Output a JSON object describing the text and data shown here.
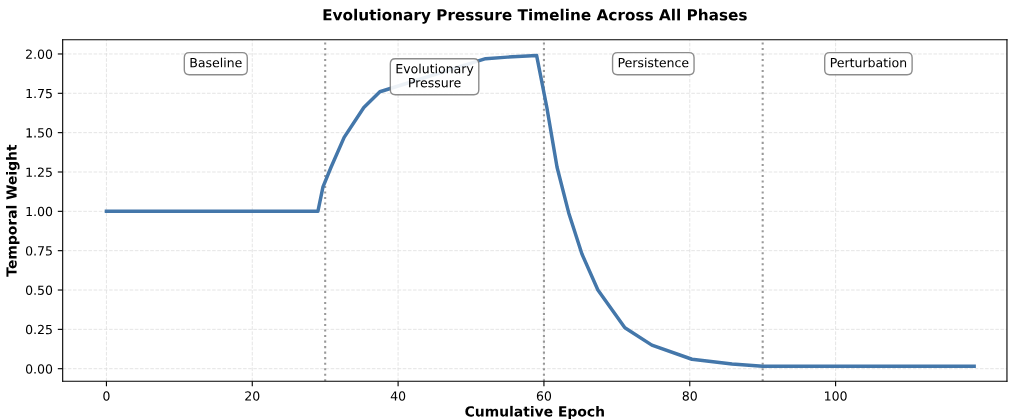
{
  "chart_data": {
    "type": "line",
    "title": "Evolutionary Pressure Timeline Across All Phases",
    "xlabel": "Cumulative Epoch",
    "ylabel": "Temporal Weight",
    "series": [
      {
        "color": "#4477aa",
        "x": [
          0,
          10,
          20,
          29,
          29.7,
          30.8,
          32.6,
          35.3,
          37.5,
          52,
          55,
          59,
          60.4,
          61.8,
          63.4,
          65.2,
          67.4,
          71.1,
          74.8,
          80.3,
          85.8,
          90,
          100,
          110,
          119
        ],
        "values": [
          1.0,
          1.0,
          1.0,
          1.0,
          1.155,
          1.28,
          1.47,
          1.66,
          1.76,
          1.97,
          1.98,
          1.99,
          1.66,
          1.28,
          0.99,
          0.73,
          0.5,
          0.26,
          0.15,
          0.06,
          0.03,
          0.015,
          0.015,
          0.015,
          0.015
        ]
      }
    ],
    "xlim": [
      -6,
      123.5
    ],
    "ylim": [
      -0.08,
      2.09
    ],
    "xticks": [
      0,
      20,
      40,
      60,
      80,
      100
    ],
    "yticks": [
      {
        "value": 0,
        "label": "0.00"
      },
      {
        "value": 0.25,
        "label": "0.25"
      },
      {
        "value": 0.5,
        "label": "0.50"
      },
      {
        "value": 0.75,
        "label": "0.75"
      },
      {
        "value": 1.0,
        "label": "1.00"
      },
      {
        "value": 1.25,
        "label": "1.25"
      },
      {
        "value": 1.5,
        "label": "1.50"
      },
      {
        "value": 1.75,
        "label": "1.75"
      },
      {
        "value": 2.0,
        "label": "2.00"
      }
    ],
    "ref_lines": [
      {
        "axis": "x",
        "value": 30,
        "color": "#999999",
        "line_style": "dotted"
      },
      {
        "axis": "x",
        "value": 60,
        "color": "#999999",
        "line_style": "dotted"
      },
      {
        "axis": "x",
        "value": 90,
        "color": "#999999",
        "line_style": "dotted"
      }
    ],
    "annotations": [
      "Baseline",
      "Evolutionary\nPressure",
      "Persistence",
      "Perturbation"
    ],
    "grid": true,
    "line_style": "solid",
    "marker": "none"
  }
}
